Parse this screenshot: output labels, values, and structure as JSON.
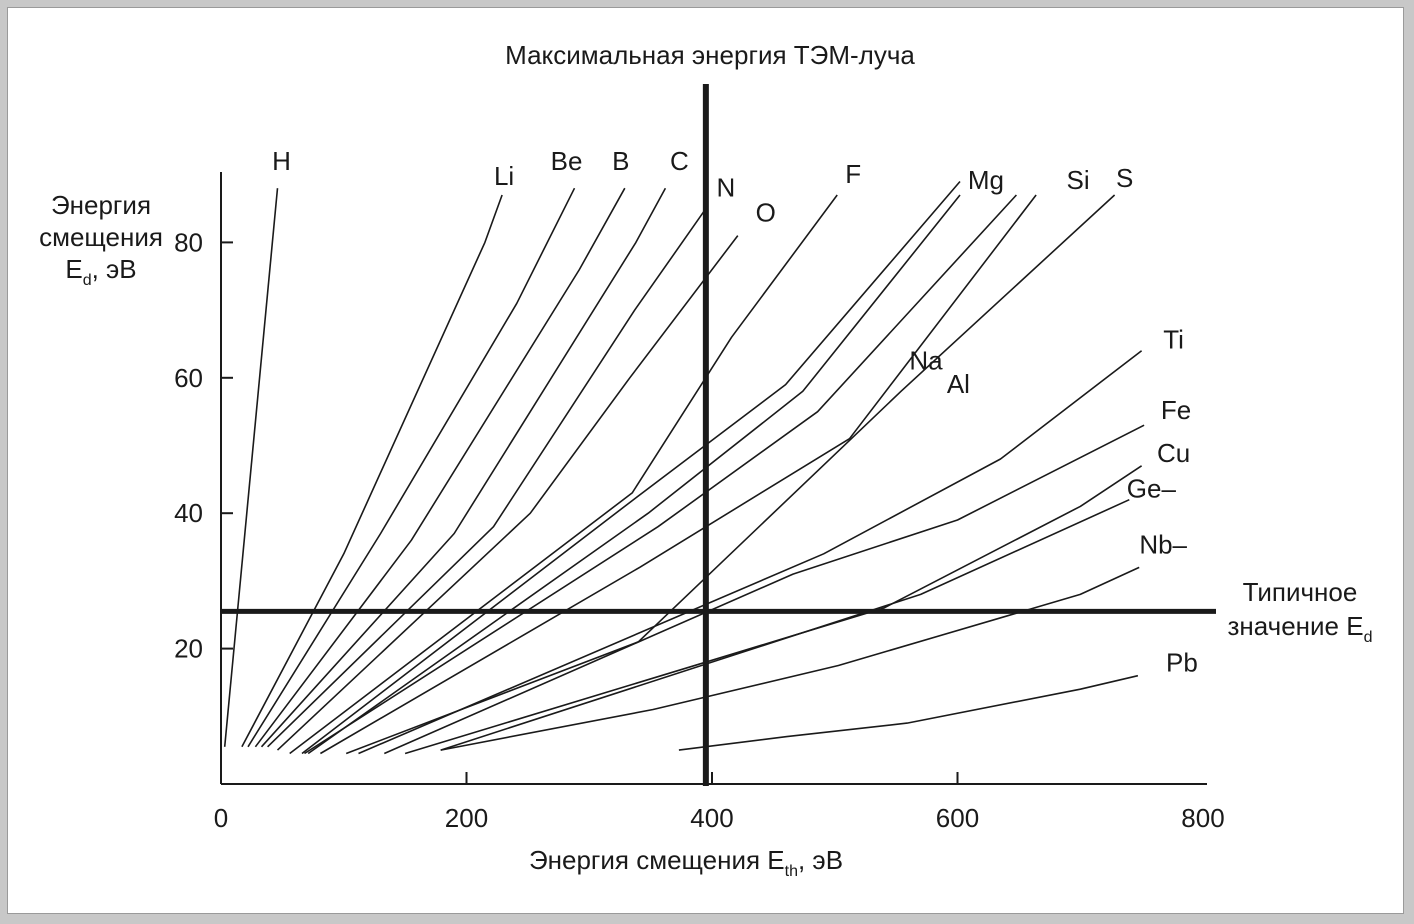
{
  "chart_data": {
    "type": "line",
    "title": "Максимальная энергия ТЭМ-луча",
    "xlabel": {
      "main": "Энергия смещения E",
      "sub": "th",
      "unit": ", эВ"
    },
    "ylabel": {
      "line1": "Энергия",
      "line2": "смещения",
      "line3_main": "E",
      "line3_sub": "d",
      "line3_unit": ", эВ"
    },
    "xlim": [
      0,
      800
    ],
    "ylim": [
      0,
      90
    ],
    "xticks": [
      {
        "value": 0,
        "label": "0"
      },
      {
        "value": 200,
        "label": "200"
      },
      {
        "value": 400,
        "label": "400"
      },
      {
        "value": 600,
        "label": "600"
      },
      {
        "value": 800,
        "label": "800"
      }
    ],
    "yticks": [
      {
        "value": 20,
        "label": "20"
      },
      {
        "value": 40,
        "label": "40"
      },
      {
        "value": 60,
        "label": "60"
      },
      {
        "value": 80,
        "label": "80"
      }
    ],
    "vline": {
      "x": 395
    },
    "hline": {
      "y": 25.5,
      "label_line1": "Типичное",
      "label_line2_main": "значение E",
      "label_line2_sub": "d"
    },
    "series": [
      {
        "name": "H",
        "points": [
          [
            3,
            5.5
          ],
          [
            46,
            88
          ]
        ]
      },
      {
        "name": "Li",
        "points": [
          [
            17,
            5.5
          ],
          [
            100,
            34
          ],
          [
            215,
            80
          ],
          [
            229,
            87
          ]
        ]
      },
      {
        "name": "Be",
        "points": [
          [
            22,
            5.5
          ],
          [
            130,
            37
          ],
          [
            241,
            71
          ],
          [
            288,
            88
          ]
        ]
      },
      {
        "name": "B",
        "points": [
          [
            28,
            5.5
          ],
          [
            155,
            36
          ],
          [
            292,
            76
          ],
          [
            329,
            88
          ]
        ]
      },
      {
        "name": "C",
        "points": [
          [
            33,
            5.5
          ],
          [
            190,
            37
          ],
          [
            338,
            80
          ],
          [
            362,
            88
          ]
        ]
      },
      {
        "name": "N",
        "points": [
          [
            38,
            5.5
          ],
          [
            222,
            38
          ],
          [
            337,
            70
          ],
          [
            395,
            85
          ]
        ]
      },
      {
        "name": "O",
        "points": [
          [
            46,
            5.0
          ],
          [
            252,
            40
          ],
          [
            333,
            60
          ],
          [
            421,
            81
          ]
        ]
      },
      {
        "name": "F",
        "points": [
          [
            56,
            4.5
          ],
          [
            335,
            43
          ],
          [
            416,
            66
          ],
          [
            502,
            87
          ]
        ]
      },
      {
        "name": "Na",
        "points": [
          [
            66,
            4.5
          ],
          [
            336,
            42
          ],
          [
            460,
            59
          ],
          [
            602,
            89
          ]
        ]
      },
      {
        "name": "Mg",
        "points": [
          [
            71,
            4.5
          ],
          [
            348,
            40
          ],
          [
            474,
            58
          ],
          [
            602,
            87
          ]
        ]
      },
      {
        "name": "Al",
        "points": [
          [
            68,
            4.5
          ],
          [
            356,
            38
          ],
          [
            486,
            55
          ],
          [
            648,
            87
          ]
        ]
      },
      {
        "name": "Si",
        "points": [
          [
            81,
            4.5
          ],
          [
            341,
            32
          ],
          [
            512,
            51
          ],
          [
            664,
            87
          ]
        ]
      },
      {
        "name": "S",
        "points": [
          [
            102,
            4.5
          ],
          [
            340,
            21
          ],
          [
            554,
            58
          ],
          [
            728,
            87
          ]
        ]
      },
      {
        "name": "Ti",
        "points": [
          [
            112,
            4.5
          ],
          [
            491,
            34
          ],
          [
            635,
            48
          ],
          [
            750,
            64
          ]
        ]
      },
      {
        "name": "Fe",
        "points": [
          [
            133,
            4.5
          ],
          [
            466,
            31
          ],
          [
            600,
            39
          ],
          [
            752,
            53
          ]
        ]
      },
      {
        "name": "Cu",
        "points": [
          [
            150,
            4.5
          ],
          [
            540,
            26
          ],
          [
            700,
            41
          ],
          [
            750,
            47
          ]
        ]
      },
      {
        "name": "Ge",
        "points": [
          [
            179,
            5.0
          ],
          [
            570,
            28
          ],
          [
            740,
            42
          ]
        ]
      },
      {
        "name": "Nb",
        "points": [
          [
            179,
            5.0
          ],
          [
            352,
            11
          ],
          [
            503,
            17.5
          ],
          [
            700,
            28
          ],
          [
            748,
            32
          ]
        ]
      },
      {
        "name": "Pb",
        "points": [
          [
            373,
            5.0
          ],
          [
            461,
            7
          ],
          [
            559,
            9
          ],
          [
            700,
            14
          ],
          [
            747,
            16
          ]
        ]
      }
    ],
    "series_label_text": {
      "H": "H",
      "Li": "Li",
      "Be": "Be",
      "B": "B",
      "C": "C",
      "N": "N",
      "O": "O",
      "F": "F",
      "Na": "Na",
      "Mg": "Mg",
      "Al": "Al",
      "Si": "Si",
      "S": "S",
      "Ti": "Ti",
      "Fe": "Fe",
      "Cu": "Cu",
      "Ge": "Ge–",
      "Nb": "Nb–",
      "Pb": "Pb"
    },
    "colors": {
      "line": "#1a1a1a",
      "background": "#ffffff",
      "frame": "#c8c8c8"
    }
  }
}
